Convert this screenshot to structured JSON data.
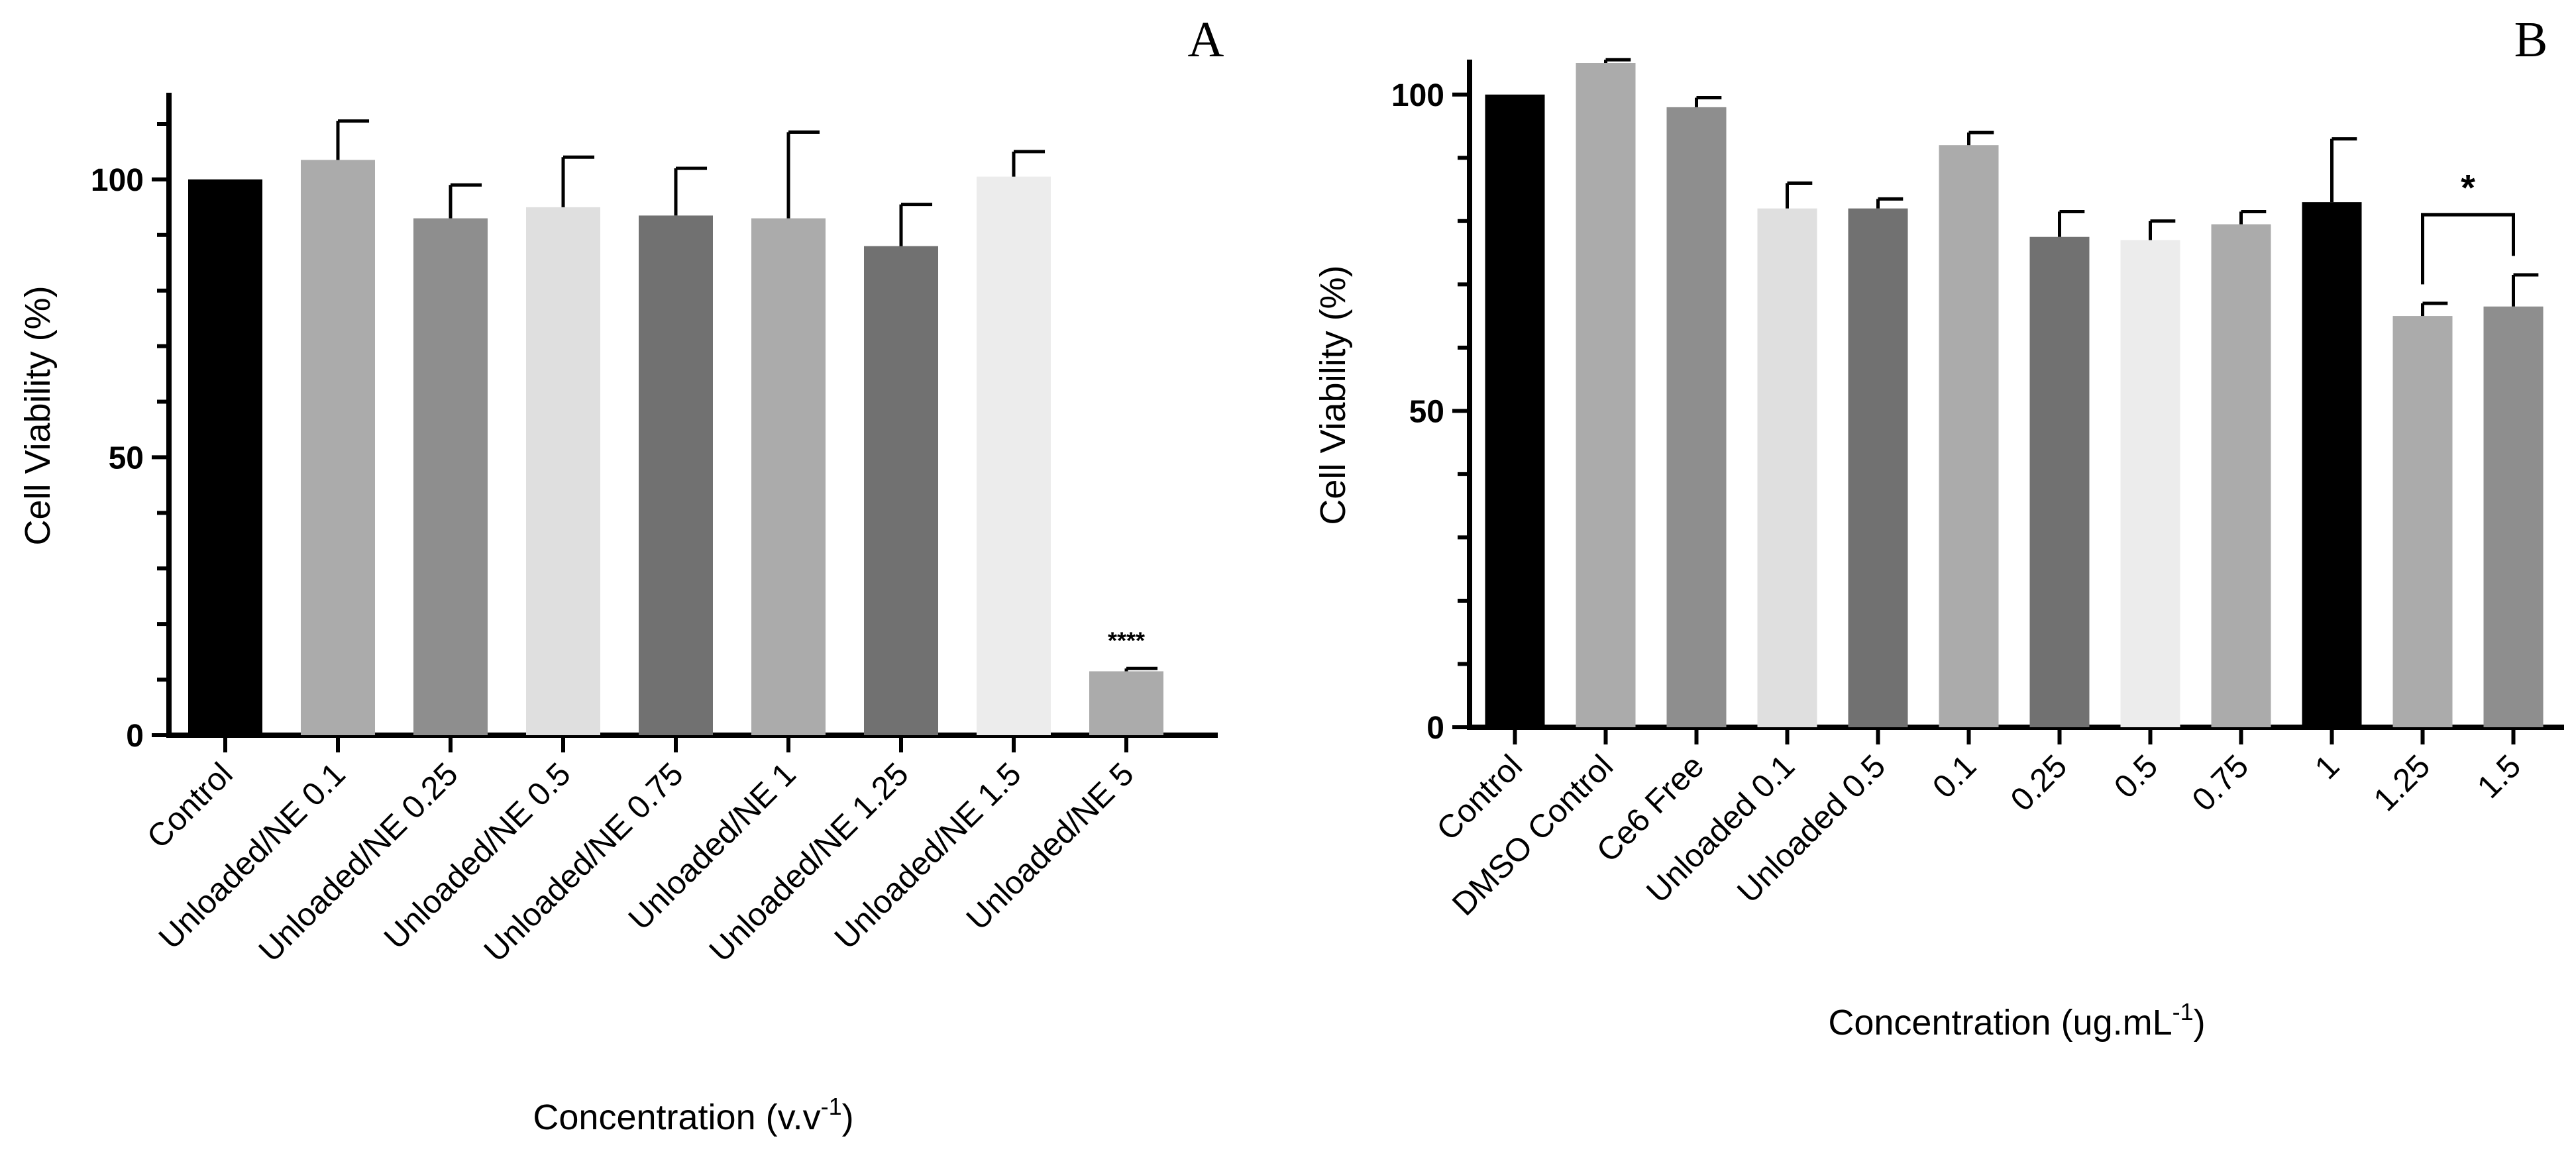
{
  "chart_data": [
    {
      "type": "bar",
      "panel": "A",
      "ylabel": "Cell Viability (%)",
      "xlabel": "Concentration (v.v",
      "xlabel_sup": "-1",
      "xlabel_end": ")",
      "ylim": [
        0,
        115
      ],
      "yticks": [
        0,
        50,
        100
      ],
      "categories": [
        "Control",
        "Unloaded/NE 0.1",
        "Unloaded/NE 0.25",
        "Unloaded/NE 0.5",
        "Unloaded/NE 0.75",
        "Unloaded/NE 1",
        "Unloaded/NE 1.25",
        "Unloaded/NE 1.5",
        "Unloaded/NE 5"
      ],
      "values": [
        100,
        103.5,
        93,
        95,
        93.5,
        93,
        88,
        100.5,
        11.5
      ],
      "errors": [
        0,
        7,
        6,
        9,
        8.5,
        15.5,
        7.5,
        4.5,
        0.5
      ],
      "colors": [
        "#000000",
        "#ababab",
        "#8e8e8e",
        "#dfdfdf",
        "#717171",
        "#ababab",
        "#717171",
        "#ececec",
        "#ababab"
      ],
      "significance": [
        {
          "index": 8,
          "label": "****"
        }
      ]
    },
    {
      "type": "bar",
      "panel": "B",
      "ylabel": "Cell Viability (%)",
      "xlabel": "Concentration (ug.mL",
      "xlabel_sup": "-1",
      "xlabel_end": ")",
      "ylim": [
        0,
        105
      ],
      "yticks": [
        0,
        50,
        100
      ],
      "categories": [
        "Control",
        "DMSO Control",
        "Ce6 Free",
        "Unloaded 0.1",
        "Unloaded 0.5",
        "0.1",
        "0.25",
        "0.5",
        "0.75",
        "1",
        "1.25",
        "1.5"
      ],
      "values": [
        100,
        105,
        98,
        82,
        82,
        92,
        77.5,
        77,
        79.5,
        83,
        65,
        66.5
      ],
      "errors": [
        0,
        0.5,
        1.5,
        4,
        1.5,
        2,
        4,
        3,
        2,
        10,
        2,
        5
      ],
      "colors": [
        "#000000",
        "#ababab",
        "#8e8e8e",
        "#dfdfdf",
        "#717171",
        "#ababab",
        "#717171",
        "#ececec",
        "#ababab",
        "#000000",
        "#ababab",
        "#8e8e8e"
      ],
      "significance": [
        {
          "from": 10,
          "to": 11,
          "label": "*"
        }
      ]
    }
  ]
}
